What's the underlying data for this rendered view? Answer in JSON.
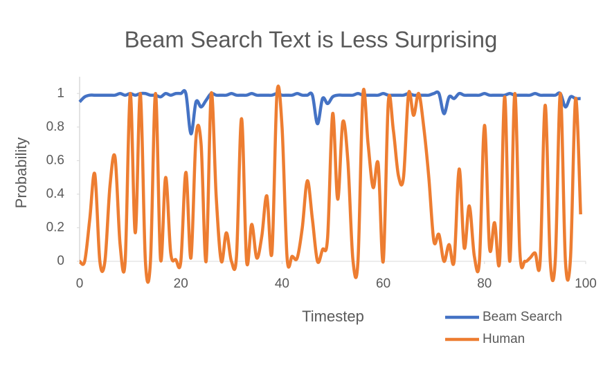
{
  "chart_data": {
    "type": "line",
    "title": "Beam Search Text is Less Surprising",
    "x_label": "Timestep",
    "y_label": "Probability",
    "x": [
      0,
      1,
      2,
      3,
      4,
      5,
      6,
      7,
      8,
      9,
      10,
      11,
      12,
      13,
      14,
      15,
      16,
      17,
      18,
      19,
      20,
      21,
      22,
      23,
      24,
      25,
      26,
      27,
      28,
      29,
      30,
      31,
      32,
      33,
      34,
      35,
      36,
      37,
      38,
      39,
      40,
      41,
      42,
      43,
      44,
      45,
      46,
      47,
      48,
      49,
      50,
      51,
      52,
      53,
      54,
      55,
      56,
      57,
      58,
      59,
      60,
      61,
      62,
      63,
      64,
      65,
      66,
      67,
      68,
      69,
      70,
      71,
      72,
      73,
      74,
      75,
      76,
      77,
      78,
      79,
      80,
      81,
      82,
      83,
      84,
      85,
      86,
      87,
      88,
      89,
      90,
      91,
      92,
      93,
      94,
      95,
      96,
      97,
      98,
      99
    ],
    "series": [
      {
        "name": "Beam Search",
        "color": "#4472c4",
        "values": [
          0.95,
          0.98,
          0.99,
          0.99,
          0.99,
          0.99,
          0.99,
          0.99,
          1,
          0.99,
          1,
          0.99,
          1,
          1,
          0.99,
          0.99,
          0.98,
          1,
          0.99,
          1,
          1,
          1,
          0.76,
          0.95,
          0.92,
          0.96,
          1,
          0.99,
          0.99,
          0.99,
          1,
          0.99,
          0.99,
          0.99,
          1,
          0.99,
          0.99,
          0.99,
          0.99,
          1,
          0.99,
          0.99,
          0.99,
          1,
          0.99,
          0.99,
          0.99,
          0.82,
          0.97,
          0.94,
          0.98,
          0.99,
          0.99,
          0.99,
          0.99,
          1,
          0.99,
          0.99,
          0.99,
          0.99,
          1,
          0.99,
          0.99,
          0.99,
          0.99,
          1,
          0.99,
          0.99,
          0.99,
          0.99,
          1,
          1,
          0.88,
          0.98,
          0.97,
          1,
          0.99,
          0.99,
          0.99,
          0.99,
          1,
          0.99,
          0.99,
          0.99,
          0.99,
          1,
          0.99,
          0.99,
          0.99,
          0.99,
          1,
          0.99,
          0.99,
          0.99,
          0.99,
          1,
          0.92,
          0.98,
          0.97,
          0.97
        ]
      },
      {
        "name": "Human",
        "color": "#ed7d31",
        "values": [
          0,
          0,
          0.25,
          0.52,
          0,
          0,
          0.45,
          0.62,
          0.1,
          0,
          1,
          0.17,
          1,
          0,
          0,
          1,
          0.01,
          0.5,
          0.05,
          0.01,
          0,
          0.53,
          0.02,
          0.74,
          0.7,
          0,
          1,
          0.38,
          0,
          0.17,
          0,
          0.03,
          0.85,
          0,
          0.22,
          0.02,
          0.15,
          0.39,
          0.05,
          1,
          0.8,
          0.02,
          0.03,
          0.02,
          0.2,
          0.48,
          0.25,
          0,
          0.07,
          0.14,
          0.88,
          0.37,
          0.83,
          0.6,
          0.01,
          0,
          1,
          0.7,
          0.44,
          0.58,
          0,
          0.95,
          0.78,
          0.51,
          0.5,
          1,
          0.87,
          1,
          0.8,
          0.5,
          0.12,
          0.16,
          0,
          0.1,
          0,
          0.55,
          0.08,
          0.33,
          0.03,
          0,
          0.81,
          0.08,
          0.23,
          0,
          0.98,
          0,
          1,
          0.05,
          0,
          0.02,
          0.05,
          0,
          0.93,
          0,
          0.01,
          1,
          0,
          0.02,
          0.97,
          0.28
        ]
      }
    ],
    "xlim": [
      0,
      100
    ],
    "xticks": [
      0,
      20,
      40,
      60,
      80,
      100
    ],
    "ylim": [
      0,
      1.1
    ],
    "yticks": [
      0,
      0.2,
      0.4,
      0.6,
      0.8,
      1
    ]
  }
}
